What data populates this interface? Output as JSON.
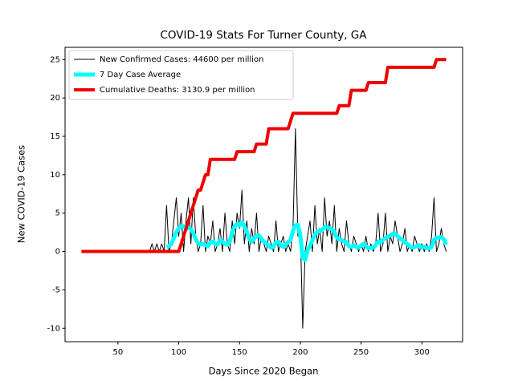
{
  "chart_data": {
    "type": "line",
    "title": "COVID-19 Stats For Turner County, GA",
    "x_label": "Days Since 2020 Began",
    "y_label": "New COVID-19 Cases",
    "x": [
      20,
      22,
      24,
      26,
      28,
      30,
      32,
      34,
      36,
      38,
      40,
      42,
      44,
      46,
      48,
      50,
      52,
      54,
      56,
      58,
      60,
      62,
      64,
      66,
      68,
      70,
      72,
      74,
      76,
      78,
      80,
      82,
      84,
      86,
      88,
      90,
      92,
      94,
      96,
      98,
      100,
      102,
      104,
      106,
      108,
      110,
      112,
      114,
      116,
      118,
      120,
      122,
      124,
      126,
      128,
      130,
      132,
      134,
      136,
      138,
      140,
      142,
      144,
      146,
      148,
      150,
      152,
      154,
      156,
      158,
      160,
      162,
      164,
      166,
      168,
      170,
      172,
      174,
      176,
      178,
      180,
      182,
      184,
      186,
      188,
      190,
      192,
      194,
      196,
      198,
      200,
      202,
      204,
      206,
      208,
      210,
      212,
      214,
      216,
      218,
      220,
      222,
      224,
      226,
      228,
      230,
      232,
      234,
      236,
      238,
      240,
      242,
      244,
      246,
      248,
      250,
      252,
      254,
      256,
      258,
      260,
      262,
      264,
      266,
      268,
      270,
      272,
      274,
      276,
      278,
      280,
      282,
      284,
      286,
      288,
      290,
      292,
      294,
      296,
      298,
      300,
      302,
      304,
      306,
      308,
      310,
      312,
      314,
      316,
      318,
      320
    ],
    "series": [
      {
        "name": "New Confirmed Cases: 44600 per million",
        "color": "#000000",
        "values": [
          0,
          0,
          0,
          0,
          0,
          0,
          0,
          0,
          0,
          0,
          0,
          0,
          0,
          0,
          0,
          0,
          0,
          0,
          0,
          0,
          0,
          0,
          0,
          0,
          0,
          0,
          0,
          0,
          0,
          1,
          0,
          1,
          0,
          1,
          0,
          6,
          0,
          1,
          4,
          7,
          2,
          5,
          0,
          4,
          7,
          1,
          7,
          2,
          0,
          1,
          6,
          0,
          2,
          1,
          4,
          0,
          1,
          3,
          0,
          5,
          1,
          0,
          4,
          1,
          5,
          3,
          8,
          1,
          4,
          0,
          3,
          1,
          5,
          0,
          2,
          1,
          0,
          2,
          1,
          0,
          4,
          0,
          1,
          2,
          0,
          1,
          0,
          3,
          16,
          2,
          3,
          -10,
          0,
          2,
          4,
          0,
          6,
          1,
          3,
          0,
          7,
          2,
          4,
          1,
          6,
          0,
          3,
          1,
          0,
          4,
          1,
          0,
          2,
          1,
          0,
          1,
          0,
          2,
          0,
          1,
          0,
          1,
          5,
          0,
          1,
          5,
          0,
          2,
          1,
          4,
          2,
          0,
          1,
          3,
          0,
          1,
          0,
          2,
          1,
          0,
          1,
          0,
          1,
          0,
          2,
          7,
          0,
          1,
          3,
          1,
          0
        ]
      },
      {
        "name": "7 Day Case Average",
        "color": "#00ffff",
        "values": [
          null,
          null,
          null,
          null,
          null,
          null,
          null,
          null,
          null,
          null,
          null,
          null,
          null,
          null,
          null,
          null,
          null,
          null,
          null,
          null,
          null,
          null,
          null,
          null,
          null,
          null,
          null,
          null,
          null,
          null,
          null,
          null,
          null,
          null,
          null,
          0.6,
          0.7,
          1.0,
          1.8,
          2.5,
          3.0,
          3.3,
          3.3,
          3.0,
          3.1,
          2.9,
          2.4,
          1.6,
          1.1,
          0.9,
          1.0,
          0.8,
          0.7,
          1.2,
          1.3,
          1.0,
          0.9,
          1.5,
          1.3,
          1.0,
          0.9,
          1.3,
          2.5,
          3.3,
          3.6,
          3.4,
          3.8,
          3.3,
          2.6,
          1.6,
          1.3,
          1.7,
          2.0,
          2.1,
          1.6,
          1.3,
          1.0,
          0.8,
          0.5,
          0.6,
          1.2,
          1.3,
          0.9,
          0.6,
          0.9,
          1.2,
          1.5,
          2.7,
          3.4,
          3.5,
          2.1,
          -0.8,
          -1.1,
          0.2,
          0.7,
          1.5,
          2.2,
          2.6,
          2.6,
          2.8,
          3.2,
          3.2,
          3.0,
          2.9,
          2.6,
          1.8,
          1.6,
          1.5,
          1.3,
          1.2,
          0.7,
          0.6,
          0.8,
          0.6,
          0.5,
          0.8,
          1.0,
          0.7,
          0.4,
          0.5,
          0.5,
          0.8,
          1.3,
          1.2,
          1.5,
          1.8,
          1.9,
          2.1,
          2.3,
          2.3,
          2.0,
          1.7,
          1.5,
          1.2,
          1.0,
          0.7,
          0.5,
          0.6,
          0.7,
          0.8,
          0.5,
          0.6,
          0.5,
          0.4,
          0.6,
          1.5,
          1.8,
          1.8,
          1.9,
          1.6,
          0.9
        ]
      },
      {
        "name": "Cumulative Deaths: 3130.9 per million",
        "color": "#ee0000",
        "values": [
          0,
          0,
          0,
          0,
          0,
          0,
          0,
          0,
          0,
          0,
          0,
          0,
          0,
          0,
          0,
          0,
          0,
          0,
          0,
          0,
          0,
          0,
          0,
          0,
          0,
          0,
          0,
          0,
          0,
          0,
          0,
          0,
          0,
          0,
          0,
          0,
          0,
          0,
          0,
          0,
          0,
          1,
          2,
          3,
          4,
          5,
          6,
          7,
          8,
          8,
          9,
          10,
          10,
          12,
          12,
          12,
          12,
          12,
          12,
          12,
          12,
          12,
          12,
          12,
          13,
          13,
          13,
          13,
          13,
          13,
          13,
          13,
          14,
          14,
          14,
          14,
          14,
          16,
          16,
          16,
          16,
          16,
          16,
          16,
          16,
          16,
          17,
          18,
          18,
          18,
          18,
          18,
          18,
          18,
          18,
          18,
          18,
          18,
          18,
          18,
          18,
          18,
          18,
          18,
          18,
          18,
          19,
          19,
          19,
          19,
          19,
          21,
          21,
          21,
          21,
          21,
          21,
          21,
          22,
          22,
          22,
          22,
          22,
          22,
          22,
          22,
          24,
          24,
          24,
          24,
          24,
          24,
          24,
          24,
          24,
          24,
          24,
          24,
          24,
          24,
          24,
          24,
          24,
          24,
          24,
          24,
          25,
          25,
          25,
          25,
          25
        ]
      }
    ],
    "xlim": [
      6.5,
      333.5
    ],
    "ylim": [
      -11.75,
      26.6
    ],
    "xticks": [
      50,
      100,
      150,
      200,
      250,
      300
    ],
    "yticks": [
      -10,
      -5,
      0,
      5,
      10,
      15,
      20,
      25
    ],
    "grid": false,
    "legend": "upper left"
  }
}
